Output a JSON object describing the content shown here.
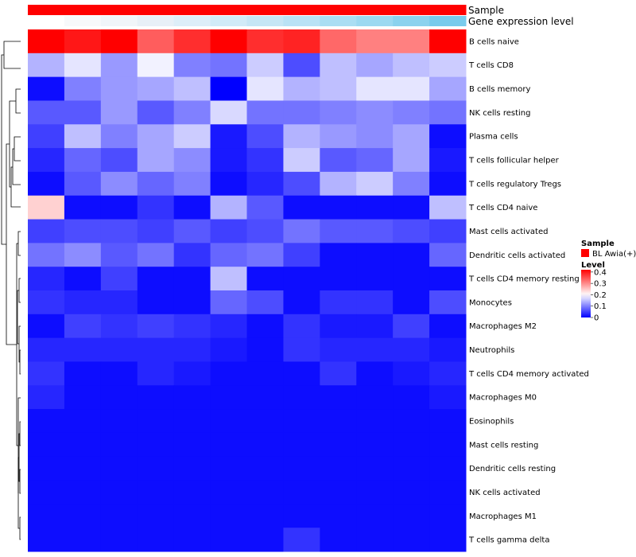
{
  "chart_data": {
    "type": "heatmap",
    "annotations": {
      "sample_label": "Sample",
      "gene_expression_label": "Gene expression level",
      "sample_color": "#ff0000",
      "gene_expression_colors": [
        "#ffffff",
        "#f7f9fb",
        "#f0f5f9",
        "#e8f0f7",
        "#ddeef8",
        "#d1ebf7",
        "#c6e6f5",
        "#b9e2f5",
        "#aadef3",
        "#9cd9f1",
        "#8bd2ee",
        "#78cbec",
        "#64c5eb",
        "#4fbdea"
      ]
    },
    "legend": {
      "sample_title": "Sample",
      "sample_entries": [
        {
          "label": "BL Awia(+)",
          "color": "#ff0000"
        }
      ],
      "level_title": "Level",
      "level_ticks": [
        0,
        0.1,
        0.2,
        0.3,
        0.4
      ],
      "level_range": [
        0,
        0.42
      ],
      "colors": {
        "low": "#0000ff",
        "mid": "#ffffff",
        "high": "#ff0000"
      },
      "midpoint": 0.2
    },
    "rows": [
      "B cells naive",
      "T cells CD8",
      "B cells memory",
      "NK cells resting",
      "Plasma cells",
      "T cells follicular helper",
      "T cells regulatory  Tregs",
      "T cells CD4 naive",
      "Mast cells activated",
      "Dendritic cells activated",
      "T cells CD4 memory resting",
      "Monocytes",
      "Macrophages M2",
      "Neutrophils",
      "T cells CD4 memory activated",
      "Macrophages M0",
      "Eosinophils",
      "Mast cells resting",
      "Dendritic cells resting",
      "NK cells activated",
      "Macrophages M1",
      "T cells gamma delta"
    ],
    "columns": 12,
    "values": [
      [
        0.42,
        0.4,
        0.42,
        0.34,
        0.38,
        0.42,
        0.38,
        0.39,
        0.33,
        0.31,
        0.31,
        0.42
      ],
      [
        0.14,
        0.18,
        0.12,
        0.19,
        0.1,
        0.09,
        0.16,
        0.06,
        0.15,
        0.13,
        0.15,
        0.16
      ],
      [
        0.01,
        0.1,
        0.12,
        0.13,
        0.15,
        0.0,
        0.18,
        0.14,
        0.15,
        0.18,
        0.18,
        0.13
      ],
      [
        0.07,
        0.07,
        0.12,
        0.07,
        0.1,
        0.17,
        0.09,
        0.09,
        0.1,
        0.11,
        0.1,
        0.09
      ],
      [
        0.05,
        0.15,
        0.1,
        0.13,
        0.16,
        0.02,
        0.06,
        0.14,
        0.12,
        0.11,
        0.13,
        0.01
      ],
      [
        0.03,
        0.08,
        0.06,
        0.13,
        0.11,
        0.02,
        0.04,
        0.16,
        0.07,
        0.08,
        0.13,
        0.02
      ],
      [
        0.01,
        0.07,
        0.11,
        0.08,
        0.1,
        0.01,
        0.03,
        0.06,
        0.14,
        0.16,
        0.1,
        0.01
      ],
      [
        0.24,
        0.01,
        0.01,
        0.04,
        0.01,
        0.14,
        0.07,
        0.01,
        0.01,
        0.01,
        0.01,
        0.15
      ],
      [
        0.05,
        0.06,
        0.06,
        0.05,
        0.07,
        0.05,
        0.06,
        0.09,
        0.07,
        0.07,
        0.06,
        0.05
      ],
      [
        0.09,
        0.11,
        0.07,
        0.09,
        0.04,
        0.08,
        0.09,
        0.05,
        0.01,
        0.01,
        0.01,
        0.08
      ],
      [
        0.03,
        0.01,
        0.05,
        0.01,
        0.01,
        0.15,
        0.01,
        0.01,
        0.01,
        0.01,
        0.01,
        0.01
      ],
      [
        0.04,
        0.03,
        0.03,
        0.01,
        0.01,
        0.08,
        0.06,
        0.01,
        0.04,
        0.04,
        0.01,
        0.06
      ],
      [
        0.01,
        0.05,
        0.04,
        0.05,
        0.04,
        0.03,
        0.01,
        0.04,
        0.02,
        0.02,
        0.05,
        0.01
      ],
      [
        0.03,
        0.03,
        0.03,
        0.03,
        0.03,
        0.02,
        0.01,
        0.04,
        0.03,
        0.03,
        0.03,
        0.02
      ],
      [
        0.04,
        0.01,
        0.01,
        0.03,
        0.02,
        0.01,
        0.01,
        0.01,
        0.04,
        0.01,
        0.02,
        0.03
      ],
      [
        0.03,
        0.01,
        0.01,
        0.01,
        0.01,
        0.01,
        0.01,
        0.01,
        0.01,
        0.01,
        0.01,
        0.02
      ],
      [
        0.01,
        0.01,
        0.01,
        0.01,
        0.01,
        0.01,
        0.01,
        0.01,
        0.01,
        0.01,
        0.01,
        0.01
      ],
      [
        0.01,
        0.01,
        0.01,
        0.01,
        0.01,
        0.01,
        0.01,
        0.01,
        0.01,
        0.01,
        0.01,
        0.01
      ],
      [
        0.01,
        0.01,
        0.01,
        0.01,
        0.01,
        0.01,
        0.01,
        0.01,
        0.01,
        0.01,
        0.01,
        0.01
      ],
      [
        0.01,
        0.01,
        0.01,
        0.01,
        0.01,
        0.01,
        0.01,
        0.01,
        0.01,
        0.01,
        0.01,
        0.01
      ],
      [
        0.01,
        0.01,
        0.01,
        0.01,
        0.01,
        0.01,
        0.01,
        0.01,
        0.01,
        0.01,
        0.01,
        0.01
      ],
      [
        0.01,
        0.01,
        0.01,
        0.01,
        0.01,
        0.01,
        0.01,
        0.04,
        0.01,
        0.01,
        0.01,
        0.01
      ]
    ]
  }
}
